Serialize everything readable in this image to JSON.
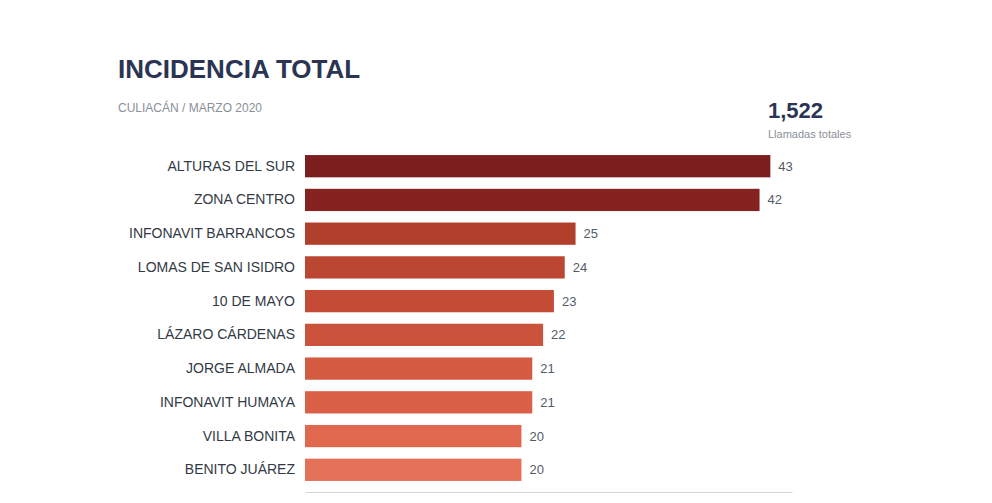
{
  "chart_data": {
    "type": "bar",
    "orientation": "horizontal",
    "title": "INCIDENCIA TOTAL",
    "subtitle": "CULIACÁN / MARZO 2020",
    "annotations": [
      "1,522",
      "Llamadas totales"
    ],
    "categories": [
      "ALTURAS DEL SUR",
      "ZONA CENTRO",
      "INFONAVIT BARRANCOS",
      "LOMAS DE SAN ISIDRO",
      "10 DE MAYO",
      "LÁZARO CÁRDENAS",
      "JORGE ALMADA",
      "INFONAVIT HUMAYA",
      "VILLA BONITA",
      "BENITO JUÁREZ"
    ],
    "values": [
      43,
      42,
      25,
      24,
      23,
      22,
      21,
      21,
      20,
      20
    ],
    "colors": [
      "#7a1e1e",
      "#84231f",
      "#b03f2c",
      "#bb4631",
      "#c44c36",
      "#cc533b",
      "#d45a41",
      "#da6047",
      "#df684f",
      "#e37057"
    ],
    "xlim": [
      0,
      45
    ],
    "data_labels": true,
    "tick_labels": "y",
    "grid": false
  }
}
